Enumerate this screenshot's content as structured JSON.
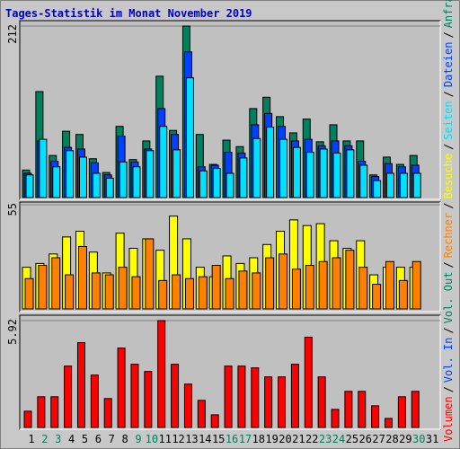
{
  "title": "Tages-Statistik im Monat November 2019",
  "legend_separator": "/",
  "chart_data": [
    {
      "type": "bar",
      "ylim": [
        0,
        212
      ],
      "yticks": [
        212
      ],
      "series": [
        {
          "name": "Anfragen",
          "color": "#00805c",
          "values": [
            34,
            131,
            52,
            82,
            78,
            48,
            31,
            88,
            47,
            70,
            150,
            83,
            212,
            78,
            41,
            71,
            63,
            110,
            124,
            100,
            80,
            97,
            69,
            90,
            70,
            70,
            28,
            50,
            41,
            52,
            null
          ]
        },
        {
          "name": "Dateien",
          "color": "#0040ff",
          "values": [
            30,
            70,
            45,
            62,
            60,
            43,
            28,
            76,
            44,
            60,
            110,
            78,
            180,
            38,
            40,
            56,
            55,
            90,
            104,
            88,
            70,
            72,
            64,
            70,
            64,
            45,
            26,
            42,
            38,
            40,
            null
          ]
        },
        {
          "name": "Seiten",
          "color": "#00e0ff",
          "values": [
            28,
            72,
            38,
            58,
            50,
            30,
            24,
            44,
            38,
            58,
            88,
            59,
            148,
            33,
            36,
            30,
            49,
            73,
            87,
            72,
            62,
            56,
            60,
            55,
            59,
            40,
            21,
            30,
            30,
            30,
            null
          ]
        }
      ]
    },
    {
      "type": "bar",
      "ylim": [
        0,
        55
      ],
      "yticks": [
        55
      ],
      "series": [
        {
          "name": "Besuche",
          "color": "#ffff00",
          "values": [
            22,
            24,
            29,
            38,
            41,
            30,
            19,
            40,
            32,
            37,
            31,
            49,
            37,
            22,
            17,
            28,
            24,
            27,
            34,
            41,
            47,
            44,
            45,
            36,
            32,
            36,
            18,
            22,
            22,
            22,
            null
          ]
        },
        {
          "name": "Rechner",
          "color": "#ff8000",
          "values": [
            16,
            23,
            27,
            18,
            33,
            19,
            18,
            22,
            17,
            37,
            15,
            18,
            16,
            17,
            23,
            16,
            20,
            19,
            27,
            29,
            21,
            23,
            25,
            27,
            31,
            22,
            13,
            25,
            15,
            25,
            null
          ]
        }
      ]
    },
    {
      "type": "bar",
      "ylim": [
        0,
        5.92
      ],
      "yticks": [
        5.92
      ],
      "categories": [
        "1",
        "2",
        "3",
        "4",
        "5",
        "6",
        "7",
        "8",
        "9",
        "10",
        "11",
        "12",
        "13",
        "14",
        "15",
        "16",
        "17",
        "18",
        "19",
        "20",
        "21",
        "22",
        "23",
        "24",
        "25",
        "26",
        "27",
        "28",
        "29",
        "30",
        "31"
      ],
      "category_colors": [
        "#000000",
        "#00805c",
        "#00805c",
        "#000000",
        "#000000",
        "#000000",
        "#000000",
        "#000000",
        "#00805c",
        "#00805c",
        "#000000",
        "#000000",
        "#000000",
        "#000000",
        "#000000",
        "#00805c",
        "#00805c",
        "#000000",
        "#000000",
        "#000000",
        "#000000",
        "#000000",
        "#00805c",
        "#00805c",
        "#000000",
        "#000000",
        "#000000",
        "#000000",
        "#000000",
        "#00805c",
        "#000000"
      ],
      "series": [
        {
          "name": "Volumen",
          "color": "#ff0000",
          "values": [
            0.9,
            1.7,
            1.7,
            3.4,
            4.7,
            2.9,
            1.6,
            4.4,
            3.5,
            3.1,
            5.92,
            3.5,
            2.4,
            1.5,
            0.7,
            3.4,
            3.4,
            3.3,
            2.8,
            2.8,
            3.5,
            5.0,
            2.8,
            1.0,
            2.0,
            2.0,
            1.2,
            0.5,
            1.7,
            2.0,
            null
          ]
        }
      ],
      "legend_extra": [
        {
          "name": "Vol. In",
          "color": "#0040ff"
        },
        {
          "name": "Vol. Out",
          "color": "#00805c"
        }
      ]
    }
  ]
}
